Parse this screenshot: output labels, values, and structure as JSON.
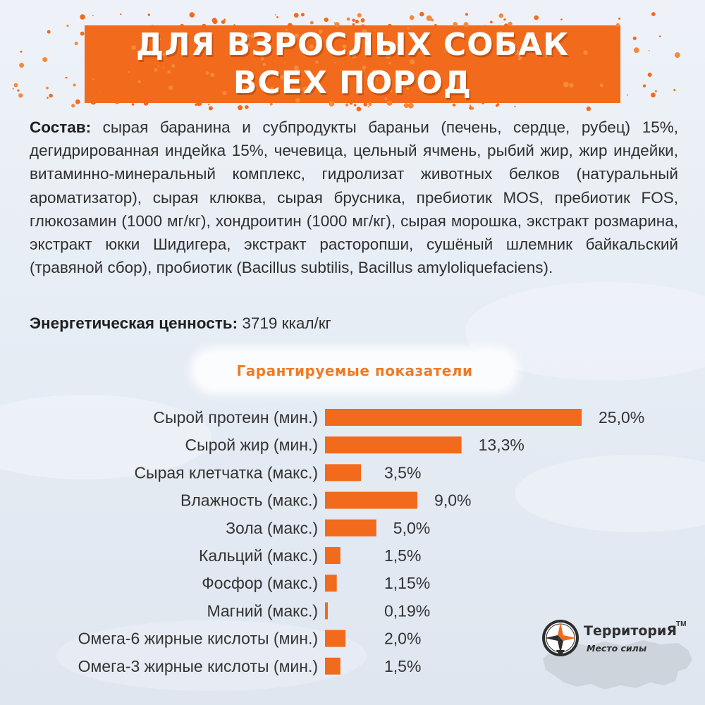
{
  "banner": {
    "line1": "ДЛЯ ВЗРОСЛЫХ СОБАК",
    "line2": "ВСЕХ ПОРОД"
  },
  "composition": {
    "label": "Состав:",
    "text": " сырая баранина и субпродукты бараньи (печень, сердце, рубец) 15%, дегидрированная индейка 15%, чечевица, цельный ячмень, рыбий жир, жир индейки, витаминно-минеральный комплекс, гидролизат животных белков (натуральный ароматизатор), сырая клюква, сырая брусника, пребиотик MOS, пребиотик FOS, глюкозамин (1000 мг/кг), хондроитин (1000 мг/кг), сырая морошка, экстракт розмарина, экстракт юкки Шидигера, экстракт расторопши, сушёный шлемник байкальский (травяной сбор), пробиотик (Bacillus subtilis, Bacillus amyloliquefaciens)."
  },
  "energy": {
    "label": "Энергетическая ценность:",
    "value": " 3719 ккал/кг"
  },
  "section_title": "Гарантируемые показатели",
  "chart_data": {
    "type": "bar",
    "orientation": "horizontal",
    "title": "Гарантируемые показатели",
    "categories": [
      "Сырой протеин (мин.)",
      "Сырой жир (мин.)",
      "Сырая клетчатка (макс.)",
      "Влажность (макс.)",
      "Зола (макс.)",
      "Кальций (макс.)",
      "Фосфор (макс.)",
      "Магний (макс.)",
      "Омега-6 жирные кислоты (мин.)",
      "Омега-3 жирные кислоты (мин.)"
    ],
    "values": [
      25.0,
      13.3,
      3.5,
      9.0,
      5.0,
      1.5,
      1.15,
      0.19,
      2.0,
      1.5
    ],
    "value_labels": [
      "25,0%",
      "13,3%",
      "3,5%",
      "9,0%",
      "5,0%",
      "1,5%",
      "1,15%",
      "0,19%",
      "2,0%",
      "1,5%"
    ],
    "unit": "%",
    "bar_color": "#f26a1b",
    "grid": false
  },
  "logo": {
    "title": "ТерриториЯ",
    "tm": "TM",
    "subtitle": "Место силы"
  },
  "colors": {
    "accent": "#f26a1b",
    "title_orange": "#f07a23"
  }
}
